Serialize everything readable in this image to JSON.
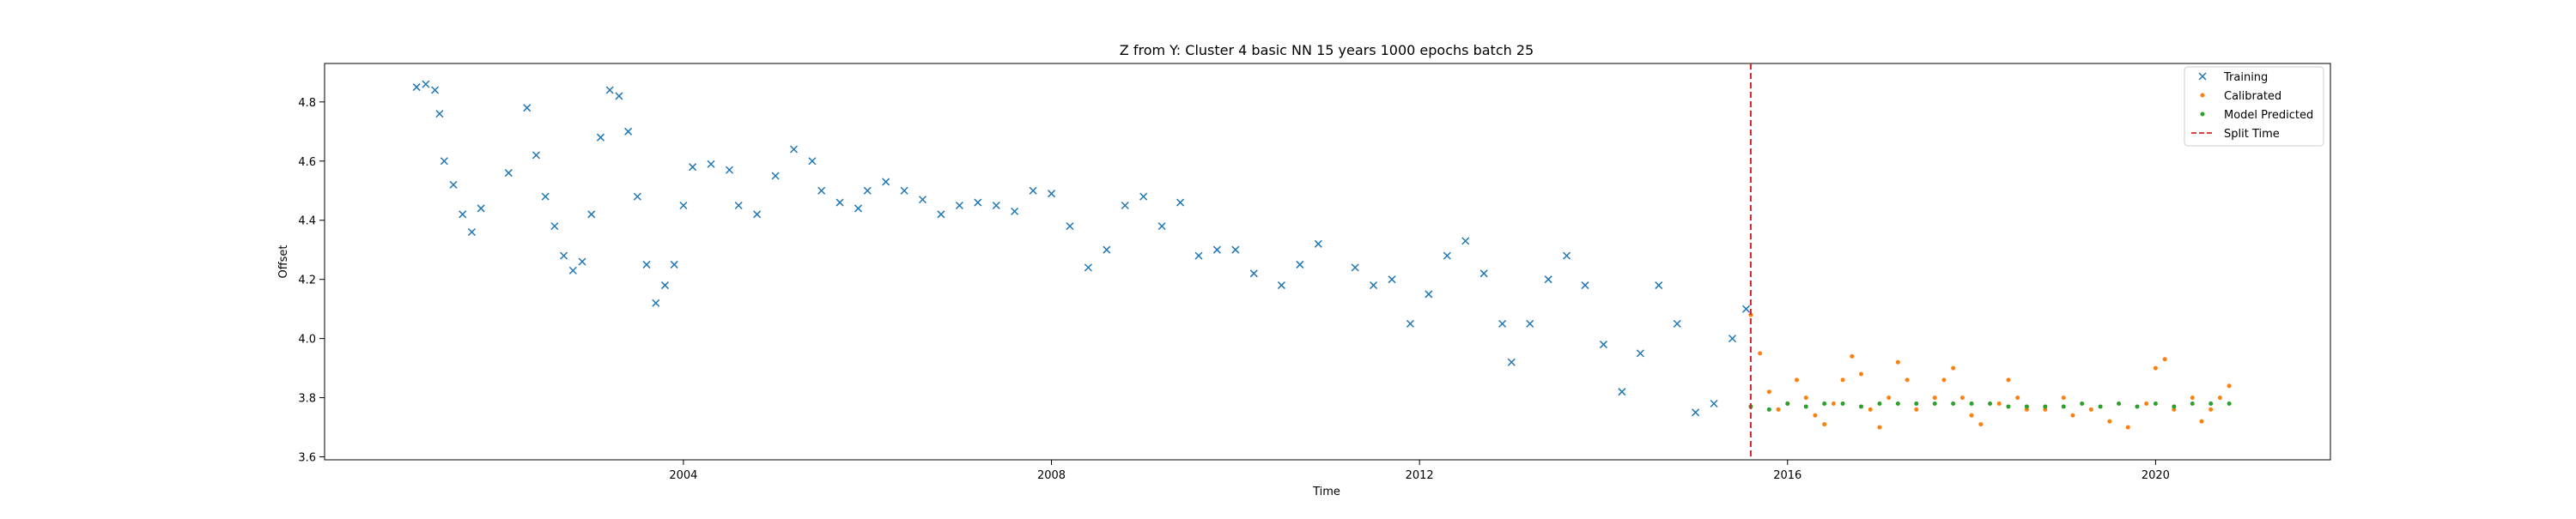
{
  "chart_data": {
    "type": "scatter",
    "title": "Z from Y: Cluster 4 basic NN 15 years 1000 epochs batch 25",
    "xlabel": "Time",
    "ylabel": "Offset",
    "xlim": [
      2000.1,
      2021.9
    ],
    "ylim": [
      3.59,
      4.93
    ],
    "x_ticks": [
      2004,
      2008,
      2012,
      2016,
      2020
    ],
    "x_tick_labels": [
      "2004",
      "2008",
      "2012",
      "2016",
      "2020"
    ],
    "y_ticks": [
      3.6,
      3.8,
      4.0,
      4.2,
      4.4,
      4.6,
      4.8
    ],
    "y_tick_labels": [
      "3.6",
      "3.8",
      "4.0",
      "4.2",
      "4.4",
      "4.6",
      "4.8"
    ],
    "grid": false,
    "legend_position": "top-right",
    "split_time": 2015.6,
    "series": [
      {
        "name": "Training",
        "marker": "x",
        "color": "#1f77b4",
        "points": [
          [
            2001.1,
            4.85
          ],
          [
            2001.2,
            4.86
          ],
          [
            2001.3,
            4.84
          ],
          [
            2001.35,
            4.76
          ],
          [
            2001.4,
            4.6
          ],
          [
            2001.5,
            4.52
          ],
          [
            2001.6,
            4.42
          ],
          [
            2001.7,
            4.36
          ],
          [
            2001.8,
            4.44
          ],
          [
            2002.1,
            4.56
          ],
          [
            2002.3,
            4.78
          ],
          [
            2002.4,
            4.62
          ],
          [
            2002.5,
            4.48
          ],
          [
            2002.6,
            4.38
          ],
          [
            2002.7,
            4.28
          ],
          [
            2002.8,
            4.23
          ],
          [
            2002.9,
            4.26
          ],
          [
            2003.0,
            4.42
          ],
          [
            2003.1,
            4.68
          ],
          [
            2003.2,
            4.84
          ],
          [
            2003.3,
            4.82
          ],
          [
            2003.4,
            4.7
          ],
          [
            2003.5,
            4.48
          ],
          [
            2003.6,
            4.25
          ],
          [
            2003.7,
            4.12
          ],
          [
            2003.8,
            4.18
          ],
          [
            2003.9,
            4.25
          ],
          [
            2004.0,
            4.45
          ],
          [
            2004.1,
            4.58
          ],
          [
            2004.3,
            4.59
          ],
          [
            2004.5,
            4.57
          ],
          [
            2004.6,
            4.45
          ],
          [
            2004.8,
            4.42
          ],
          [
            2005.0,
            4.55
          ],
          [
            2005.2,
            4.64
          ],
          [
            2005.4,
            4.6
          ],
          [
            2005.5,
            4.5
          ],
          [
            2005.7,
            4.46
          ],
          [
            2005.9,
            4.44
          ],
          [
            2006.0,
            4.5
          ],
          [
            2006.2,
            4.53
          ],
          [
            2006.4,
            4.5
          ],
          [
            2006.6,
            4.47
          ],
          [
            2006.8,
            4.42
          ],
          [
            2007.0,
            4.45
          ],
          [
            2007.2,
            4.46
          ],
          [
            2007.4,
            4.45
          ],
          [
            2007.6,
            4.43
          ],
          [
            2007.8,
            4.5
          ],
          [
            2008.0,
            4.49
          ],
          [
            2008.2,
            4.38
          ],
          [
            2008.4,
            4.24
          ],
          [
            2008.6,
            4.3
          ],
          [
            2008.8,
            4.45
          ],
          [
            2009.0,
            4.48
          ],
          [
            2009.2,
            4.38
          ],
          [
            2009.4,
            4.46
          ],
          [
            2009.6,
            4.28
          ],
          [
            2009.8,
            4.3
          ],
          [
            2010.0,
            4.3
          ],
          [
            2010.2,
            4.22
          ],
          [
            2010.5,
            4.18
          ],
          [
            2010.7,
            4.25
          ],
          [
            2010.9,
            4.32
          ],
          [
            2011.3,
            4.24
          ],
          [
            2011.5,
            4.18
          ],
          [
            2011.7,
            4.2
          ],
          [
            2011.9,
            4.05
          ],
          [
            2012.1,
            4.15
          ],
          [
            2012.3,
            4.28
          ],
          [
            2012.5,
            4.33
          ],
          [
            2012.7,
            4.22
          ],
          [
            2012.9,
            4.05
          ],
          [
            2013.0,
            3.92
          ],
          [
            2013.2,
            4.05
          ],
          [
            2013.4,
            4.2
          ],
          [
            2013.6,
            4.28
          ],
          [
            2013.8,
            4.18
          ],
          [
            2014.0,
            3.98
          ],
          [
            2014.2,
            3.82
          ],
          [
            2014.4,
            3.95
          ],
          [
            2014.6,
            4.18
          ],
          [
            2014.8,
            4.05
          ],
          [
            2015.0,
            3.75
          ],
          [
            2015.2,
            3.78
          ],
          [
            2015.4,
            4.0
          ],
          [
            2015.55,
            4.1
          ]
        ]
      },
      {
        "name": "Calibrated",
        "marker": "dot",
        "color": "#ff7f0e",
        "points": [
          [
            2015.6,
            4.08
          ],
          [
            2015.7,
            3.95
          ],
          [
            2015.8,
            3.82
          ],
          [
            2015.9,
            3.76
          ],
          [
            2016.0,
            3.78
          ],
          [
            2016.1,
            3.86
          ],
          [
            2016.2,
            3.8
          ],
          [
            2016.3,
            3.74
          ],
          [
            2016.4,
            3.71
          ],
          [
            2016.5,
            3.78
          ],
          [
            2016.6,
            3.86
          ],
          [
            2016.7,
            3.94
          ],
          [
            2016.8,
            3.88
          ],
          [
            2016.9,
            3.76
          ],
          [
            2017.0,
            3.7
          ],
          [
            2017.1,
            3.8
          ],
          [
            2017.2,
            3.92
          ],
          [
            2017.3,
            3.86
          ],
          [
            2017.4,
            3.76
          ],
          [
            2017.6,
            3.8
          ],
          [
            2017.7,
            3.86
          ],
          [
            2017.8,
            3.9
          ],
          [
            2017.9,
            3.8
          ],
          [
            2018.0,
            3.74
          ],
          [
            2018.1,
            3.71
          ],
          [
            2018.3,
            3.78
          ],
          [
            2018.4,
            3.86
          ],
          [
            2018.5,
            3.8
          ],
          [
            2018.6,
            3.76
          ],
          [
            2018.8,
            3.76
          ],
          [
            2019.0,
            3.8
          ],
          [
            2019.1,
            3.74
          ],
          [
            2019.3,
            3.76
          ],
          [
            2019.5,
            3.72
          ],
          [
            2019.7,
            3.7
          ],
          [
            2019.9,
            3.78
          ],
          [
            2020.0,
            3.9
          ],
          [
            2020.1,
            3.93
          ],
          [
            2020.2,
            3.76
          ],
          [
            2020.4,
            3.8
          ],
          [
            2020.5,
            3.72
          ],
          [
            2020.6,
            3.76
          ],
          [
            2020.7,
            3.8
          ],
          [
            2020.8,
            3.84
          ]
        ]
      },
      {
        "name": "Model Predicted",
        "marker": "dot",
        "color": "#2ca02c",
        "points": [
          [
            2015.6,
            3.77
          ],
          [
            2015.8,
            3.76
          ],
          [
            2016.0,
            3.78
          ],
          [
            2016.2,
            3.77
          ],
          [
            2016.4,
            3.78
          ],
          [
            2016.6,
            3.78
          ],
          [
            2016.8,
            3.77
          ],
          [
            2017.0,
            3.78
          ],
          [
            2017.2,
            3.78
          ],
          [
            2017.4,
            3.78
          ],
          [
            2017.6,
            3.78
          ],
          [
            2017.8,
            3.78
          ],
          [
            2018.0,
            3.78
          ],
          [
            2018.2,
            3.78
          ],
          [
            2018.4,
            3.77
          ],
          [
            2018.6,
            3.77
          ],
          [
            2018.8,
            3.77
          ],
          [
            2019.0,
            3.77
          ],
          [
            2019.2,
            3.78
          ],
          [
            2019.4,
            3.77
          ],
          [
            2019.6,
            3.78
          ],
          [
            2019.8,
            3.77
          ],
          [
            2020.0,
            3.78
          ],
          [
            2020.2,
            3.77
          ],
          [
            2020.4,
            3.78
          ],
          [
            2020.6,
            3.78
          ],
          [
            2020.8,
            3.78
          ]
        ]
      }
    ],
    "reference_lines": [
      {
        "name": "Split Time",
        "style": "dashed",
        "color": "#d62728",
        "x": 2015.6
      }
    ]
  }
}
